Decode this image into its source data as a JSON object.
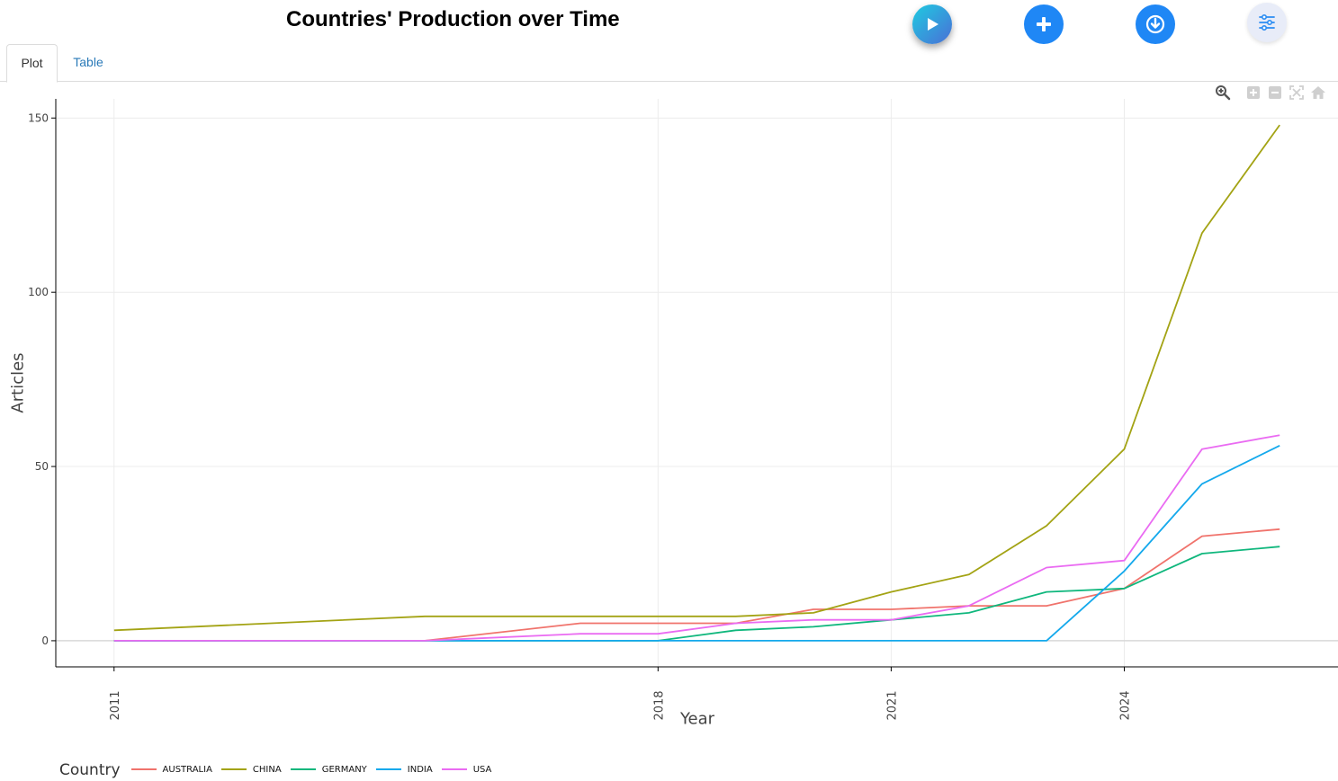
{
  "page": {
    "title": "Countries' Production over Time",
    "tabs": [
      {
        "label": "Plot",
        "active": true
      },
      {
        "label": "Table",
        "active": false
      }
    ],
    "buttons": [
      {
        "name": "play-button",
        "icon": "play-icon",
        "color": "#1ecbe1"
      },
      {
        "name": "add-button",
        "icon": "plus-icon",
        "color": "#1f87f5"
      },
      {
        "name": "download-button",
        "icon": "download-icon",
        "color": "#1f87f5"
      },
      {
        "name": "options-button",
        "icon": "sliders-icon",
        "color": "#e8ecf8"
      }
    ],
    "modebar": [
      "zoom-icon",
      "zoom-in-icon",
      "zoom-out-icon",
      "autoscale-icon",
      "reset-axes-icon"
    ]
  },
  "chart_data": {
    "type": "line",
    "title": "",
    "xlabel": "Year",
    "ylabel": "Articles",
    "x": [
      2011,
      2015,
      2017,
      2018,
      2019,
      2020,
      2021,
      2022,
      2023,
      2024,
      2025,
      2026
    ],
    "xlim": [
      2010.25,
      2026.75
    ],
    "ylim": [
      -7.5,
      155.5
    ],
    "x_ticks": [
      2011,
      2018,
      2021,
      2024
    ],
    "y_ticks": [
      0,
      50,
      100,
      150
    ],
    "grid": true,
    "legend": {
      "title": "Country",
      "position": "bottom-left"
    },
    "series": [
      {
        "name": "AUSTRALIA",
        "color": "#f0736c",
        "values": [
          0,
          0,
          5,
          5,
          5,
          9,
          9,
          10,
          10,
          15,
          30,
          32
        ]
      },
      {
        "name": "CHINA",
        "color": "#a3a314",
        "values": [
          3,
          7,
          7,
          7,
          7,
          8,
          14,
          19,
          33,
          55,
          117,
          148
        ]
      },
      {
        "name": "GERMANY",
        "color": "#10b77d",
        "values": [
          0,
          0,
          0,
          0,
          3,
          4,
          6,
          8,
          14,
          15,
          25,
          27
        ]
      },
      {
        "name": "INDIA",
        "color": "#15a9ec",
        "values": [
          0,
          0,
          0,
          0,
          0,
          0,
          0,
          0,
          0,
          20,
          45,
          56
        ]
      },
      {
        "name": "USA",
        "color": "#ea6bf2",
        "values": [
          0,
          0,
          2,
          2,
          5,
          6,
          6,
          10,
          21,
          23,
          55,
          59
        ]
      }
    ]
  }
}
